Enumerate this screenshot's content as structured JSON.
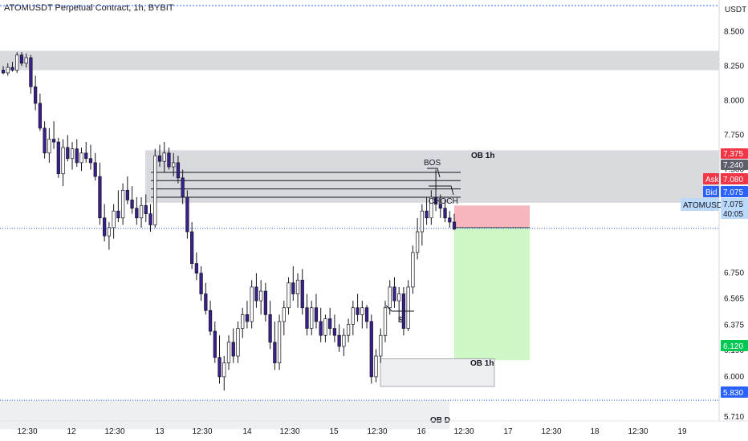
{
  "header": {
    "title": "ATOMUSDT Perpetual Contract, 1h, BYBIT"
  },
  "colors": {
    "up_fill": "#ffffff",
    "down_fill": "#3c1f8e",
    "wick": "#131722",
    "zone_gray": "#d9dadd",
    "zone_light": "#eeeff1",
    "stop_zone": "#f7b6bd",
    "target_zone": "#cdf7c5",
    "price_line": "#2962ff",
    "ask_red": "#f23645",
    "bid_blue": "#2962ff",
    "target_green": "#00c853",
    "dark_tag": "#5d606b",
    "gray_tag": "#787b86"
  },
  "chart_data": {
    "type": "candlestick",
    "title": "ATOMUSDT Perpetual Contract, 1h, BYBIT",
    "y_unit": "USDT",
    "y_ticks": [
      "8.500",
      "8.250",
      "8.000",
      "7.750",
      "7.500",
      "7.240",
      "7.080",
      "7.075",
      "6.750",
      "6.565",
      "6.375",
      "6.190",
      "6.000",
      "5.710"
    ],
    "y_range": [
      5.68,
      8.67
    ],
    "x_ticks": [
      "12:30",
      "12",
      "12:30",
      "13",
      "12:30",
      "14",
      "12:30",
      "15",
      "12:30",
      "16",
      "12:30",
      "17",
      "12:30",
      "18",
      "12:30",
      "19"
    ],
    "price_labels": [
      {
        "text": "7.375",
        "color": "#f23645"
      },
      {
        "text": "7.240",
        "color": "#5d606b"
      },
      {
        "text": "Ask",
        "color": "#f23645"
      },
      {
        "text": "7.080",
        "color": "#f23645"
      },
      {
        "text": "Bid",
        "color": "#2962ff"
      },
      {
        "text": "7.075",
        "color": "#2962ff"
      },
      {
        "text": "ATOMUSDT",
        "color": "#2962ff"
      },
      {
        "text": "7.075",
        "color": "#2962ff"
      },
      {
        "text": "40:05",
        "color": "#2962ff"
      },
      {
        "text": "6.120",
        "color": "#00c853"
      },
      {
        "text": "5.830",
        "color": "#2962ff"
      }
    ],
    "annotations": [
      "OB 1h",
      "OB 1h",
      "BOS",
      "CHOCH",
      "$",
      "OB D"
    ],
    "zones": [
      {
        "kind": "supply",
        "low": 8.22,
        "high": 8.36
      },
      {
        "kind": "order-block",
        "label": "OB 1h",
        "low": 7.26,
        "high": 7.64
      },
      {
        "kind": "stop",
        "low": 7.08,
        "high": 7.24
      },
      {
        "kind": "target",
        "low": 6.12,
        "high": 7.08
      },
      {
        "kind": "order-block",
        "label": "OB 1h",
        "low": 5.93,
        "high": 6.13
      },
      {
        "kind": "daily-ob",
        "label": "OB D",
        "low": 5.62,
        "high": 5.83
      }
    ],
    "levels": [
      7.48,
      7.42,
      7.36,
      7.3
    ],
    "current_price": 7.075,
    "candles": [
      [
        8.22,
        8.25,
        8.19,
        8.2
      ],
      [
        8.2,
        8.27,
        8.18,
        8.24
      ],
      [
        8.24,
        8.28,
        8.21,
        8.22
      ],
      [
        8.22,
        8.35,
        8.2,
        8.33
      ],
      [
        8.33,
        8.35,
        8.25,
        8.27
      ],
      [
        8.27,
        8.34,
        8.24,
        8.31
      ],
      [
        8.31,
        8.33,
        8.05,
        8.1
      ],
      [
        8.1,
        8.18,
        7.93,
        7.98
      ],
      [
        7.98,
        8.05,
        7.78,
        7.8
      ],
      [
        7.8,
        7.85,
        7.58,
        7.62
      ],
      [
        7.62,
        7.8,
        7.55,
        7.72
      ],
      [
        7.72,
        7.85,
        7.65,
        7.7
      ],
      [
        7.7,
        7.73,
        7.44,
        7.47
      ],
      [
        7.47,
        7.72,
        7.38,
        7.66
      ],
      [
        7.66,
        7.75,
        7.56,
        7.58
      ],
      [
        7.58,
        7.7,
        7.5,
        7.65
      ],
      [
        7.65,
        7.72,
        7.52,
        7.55
      ],
      [
        7.55,
        7.66,
        7.49,
        7.62
      ],
      [
        7.62,
        7.7,
        7.55,
        7.58
      ],
      [
        7.58,
        7.68,
        7.5,
        7.55
      ],
      [
        7.55,
        7.62,
        7.42,
        7.45
      ],
      [
        7.45,
        7.55,
        7.1,
        7.15
      ],
      [
        7.15,
        7.25,
        6.98,
        7.02
      ],
      [
        7.02,
        7.12,
        6.92,
        7.08
      ],
      [
        7.08,
        7.25,
        7.0,
        7.2
      ],
      [
        7.2,
        7.35,
        7.12,
        7.15
      ],
      [
        7.15,
        7.4,
        7.1,
        7.35
      ],
      [
        7.35,
        7.45,
        7.25,
        7.28
      ],
      [
        7.28,
        7.38,
        7.18,
        7.22
      ],
      [
        7.22,
        7.3,
        7.1,
        7.15
      ],
      [
        7.15,
        7.3,
        7.08,
        7.24
      ],
      [
        7.24,
        7.32,
        7.12,
        7.18
      ],
      [
        7.18,
        7.25,
        7.05,
        7.1
      ],
      [
        7.1,
        7.65,
        7.08,
        7.6
      ],
      [
        7.6,
        7.68,
        7.52,
        7.56
      ],
      [
        7.56,
        7.7,
        7.48,
        7.62
      ],
      [
        7.62,
        7.66,
        7.5,
        7.52
      ],
      [
        7.52,
        7.62,
        7.45,
        7.55
      ],
      [
        7.55,
        7.6,
        7.4,
        7.44
      ],
      [
        7.44,
        7.5,
        7.25,
        7.3
      ],
      [
        7.3,
        7.35,
        7.0,
        7.05
      ],
      [
        7.05,
        7.12,
        6.78,
        6.82
      ],
      [
        6.82,
        6.9,
        6.7,
        6.75
      ],
      [
        6.75,
        6.8,
        6.55,
        6.6
      ],
      [
        6.6,
        6.68,
        6.45,
        6.48
      ],
      [
        6.48,
        6.55,
        6.3,
        6.33
      ],
      [
        6.33,
        6.4,
        6.1,
        6.14
      ],
      [
        6.14,
        6.3,
        5.95,
        6.0
      ],
      [
        6.0,
        6.15,
        5.9,
        6.1
      ],
      [
        6.1,
        6.3,
        6.05,
        6.25
      ],
      [
        6.25,
        6.35,
        6.1,
        6.15
      ],
      [
        6.15,
        6.4,
        6.1,
        6.35
      ],
      [
        6.35,
        6.5,
        6.28,
        6.45
      ],
      [
        6.45,
        6.55,
        6.35,
        6.4
      ],
      [
        6.4,
        6.7,
        6.35,
        6.65
      ],
      [
        6.65,
        6.75,
        6.5,
        6.55
      ],
      [
        6.55,
        6.7,
        6.45,
        6.62
      ],
      [
        6.62,
        6.68,
        6.4,
        6.45
      ],
      [
        6.45,
        6.55,
        6.2,
        6.25
      ],
      [
        6.25,
        6.4,
        6.05,
        6.1
      ],
      [
        6.1,
        6.45,
        6.05,
        6.4
      ],
      [
        6.4,
        6.55,
        6.3,
        6.5
      ],
      [
        6.5,
        6.72,
        6.45,
        6.68
      ],
      [
        6.68,
        6.8,
        6.55,
        6.6
      ],
      [
        6.6,
        6.75,
        6.5,
        6.7
      ],
      [
        6.7,
        6.78,
        6.45,
        6.5
      ],
      [
        6.5,
        6.6,
        6.3,
        6.35
      ],
      [
        6.35,
        6.55,
        6.3,
        6.5
      ],
      [
        6.5,
        6.6,
        6.35,
        6.4
      ],
      [
        6.4,
        6.5,
        6.25,
        6.3
      ],
      [
        6.3,
        6.45,
        6.25,
        6.42
      ],
      [
        6.42,
        6.5,
        6.3,
        6.35
      ],
      [
        6.35,
        6.45,
        6.25,
        6.3
      ],
      [
        6.3,
        6.38,
        6.18,
        6.22
      ],
      [
        6.22,
        6.35,
        6.15,
        6.3
      ],
      [
        6.3,
        6.42,
        6.25,
        6.38
      ],
      [
        6.38,
        6.55,
        6.3,
        6.5
      ],
      [
        6.5,
        6.6,
        6.4,
        6.45
      ],
      [
        6.45,
        6.55,
        6.35,
        6.5
      ],
      [
        6.5,
        6.52,
        6.35,
        6.4
      ],
      [
        6.4,
        6.45,
        5.95,
        6.0
      ],
      [
        6.0,
        6.2,
        5.96,
        6.15
      ],
      [
        6.15,
        6.35,
        6.1,
        6.3
      ],
      [
        6.3,
        6.55,
        6.25,
        6.5
      ],
      [
        6.5,
        6.7,
        6.45,
        6.65
      ],
      [
        6.65,
        6.72,
        6.5,
        6.55
      ],
      [
        6.55,
        6.65,
        6.4,
        6.6
      ],
      [
        6.6,
        6.65,
        6.3,
        6.35
      ],
      [
        6.35,
        6.7,
        6.33,
        6.65
      ],
      [
        6.65,
        6.95,
        6.6,
        6.9
      ],
      [
        6.9,
        7.15,
        6.85,
        7.05
      ],
      [
        7.05,
        7.25,
        6.95,
        7.2
      ],
      [
        7.2,
        7.3,
        7.1,
        7.15
      ],
      [
        7.15,
        7.35,
        7.1,
        7.3
      ],
      [
        7.3,
        7.5,
        7.2,
        7.25
      ],
      [
        7.25,
        7.32,
        7.15,
        7.22
      ],
      [
        7.22,
        7.28,
        7.12,
        7.15
      ],
      [
        7.15,
        7.2,
        7.08,
        7.12
      ],
      [
        7.12,
        7.18,
        7.06,
        7.07
      ]
    ]
  }
}
